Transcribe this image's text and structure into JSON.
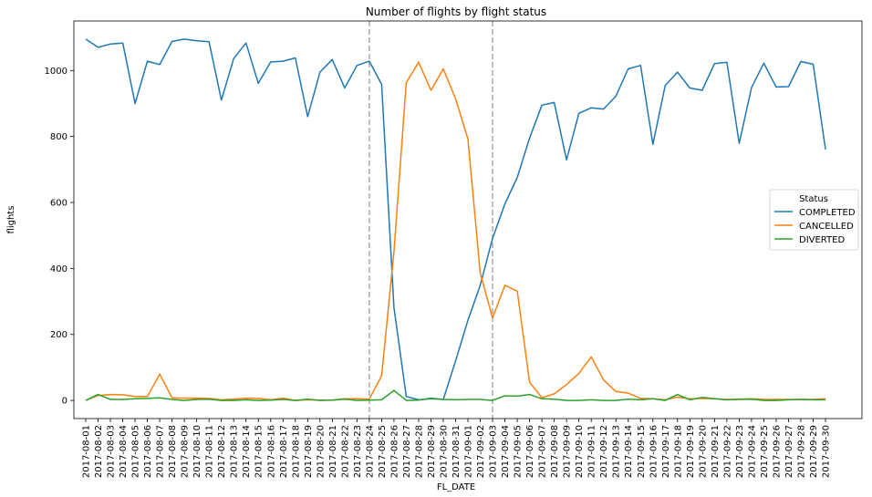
{
  "chart_data": {
    "type": "line",
    "title": "Number of flights by flight status",
    "xlabel": "FL_DATE",
    "ylabel": "flights",
    "ylim": [
      -55,
      1150
    ],
    "yticks": [
      0,
      200,
      400,
      600,
      800,
      1000
    ],
    "grid": false,
    "legend": {
      "title": "Status",
      "placement": "center-right"
    },
    "vlines": [
      "2017-08-24",
      "2017-09-03"
    ],
    "x": [
      "2017-08-01",
      "2017-08-02",
      "2017-08-03",
      "2017-08-04",
      "2017-08-05",
      "2017-08-06",
      "2017-08-07",
      "2017-08-08",
      "2017-08-09",
      "2017-08-10",
      "2017-08-11",
      "2017-08-12",
      "2017-08-13",
      "2017-08-14",
      "2017-08-15",
      "2017-08-16",
      "2017-08-17",
      "2017-08-18",
      "2017-08-19",
      "2017-08-20",
      "2017-08-21",
      "2017-08-22",
      "2017-08-23",
      "2017-08-24",
      "2017-08-25",
      "2017-08-26",
      "2017-08-27",
      "2017-08-28",
      "2017-08-29",
      "2017-08-30",
      "2017-08-31",
      "2017-09-01",
      "2017-09-02",
      "2017-09-03",
      "2017-09-04",
      "2017-09-05",
      "2017-09-06",
      "2017-09-07",
      "2017-09-08",
      "2017-09-09",
      "2017-09-10",
      "2017-09-11",
      "2017-09-12",
      "2017-09-13",
      "2017-09-14",
      "2017-09-15",
      "2017-09-16",
      "2017-09-17",
      "2017-09-18",
      "2017-09-19",
      "2017-09-20",
      "2017-09-21",
      "2017-09-22",
      "2017-09-23",
      "2017-09-24",
      "2017-09-25",
      "2017-09-26",
      "2017-09-27",
      "2017-09-28",
      "2017-09-29",
      "2017-09-30"
    ],
    "series": [
      {
        "name": "COMPLETED",
        "color": "#1f77b4",
        "values": [
          1095,
          1070,
          1080,
          1083,
          900,
          1028,
          1018,
          1088,
          1095,
          1090,
          1087,
          910,
          1036,
          1083,
          961,
          1026,
          1028,
          1038,
          860,
          995,
          1033,
          947,
          1015,
          1028,
          958,
          282,
          12,
          2,
          5,
          3,
          120,
          243,
          349,
          491,
          596,
          676,
          795,
          895,
          903,
          729,
          870,
          887,
          883,
          922,
          1005,
          1015,
          776,
          955,
          995,
          947,
          940,
          1021,
          1025,
          779,
          948,
          1022,
          950,
          951,
          1027,
          1019,
          761
        ]
      },
      {
        "name": "CANCELLED",
        "color": "#ff7f0e",
        "values": [
          0,
          15,
          18,
          17,
          12,
          12,
          80,
          8,
          7,
          7,
          6,
          2,
          4,
          7,
          6,
          2,
          7,
          0,
          2,
          1,
          1,
          5,
          5,
          4,
          75,
          450,
          963,
          1025,
          940,
          1005,
          914,
          792,
          386,
          250,
          349,
          331,
          55,
          8,
          20,
          48,
          82,
          132,
          62,
          27,
          22,
          6,
          5,
          2,
          10,
          5,
          6,
          5,
          3,
          4,
          5,
          3,
          3,
          3,
          3,
          3,
          5
        ]
      },
      {
        "name": "DIVERTED",
        "color": "#2ca02c",
        "values": [
          0,
          18,
          3,
          3,
          5,
          6,
          8,
          3,
          0,
          3,
          4,
          0,
          0,
          2,
          0,
          1,
          3,
          0,
          4,
          0,
          1,
          4,
          0,
          1,
          2,
          30,
          0,
          1,
          7,
          3,
          2,
          3,
          3,
          0,
          14,
          13,
          18,
          5,
          4,
          0,
          0,
          2,
          0,
          0,
          4,
          2,
          5,
          0,
          18,
          2,
          9,
          5,
          2,
          3,
          4,
          0,
          0,
          2,
          3,
          2,
          2
        ]
      }
    ]
  }
}
